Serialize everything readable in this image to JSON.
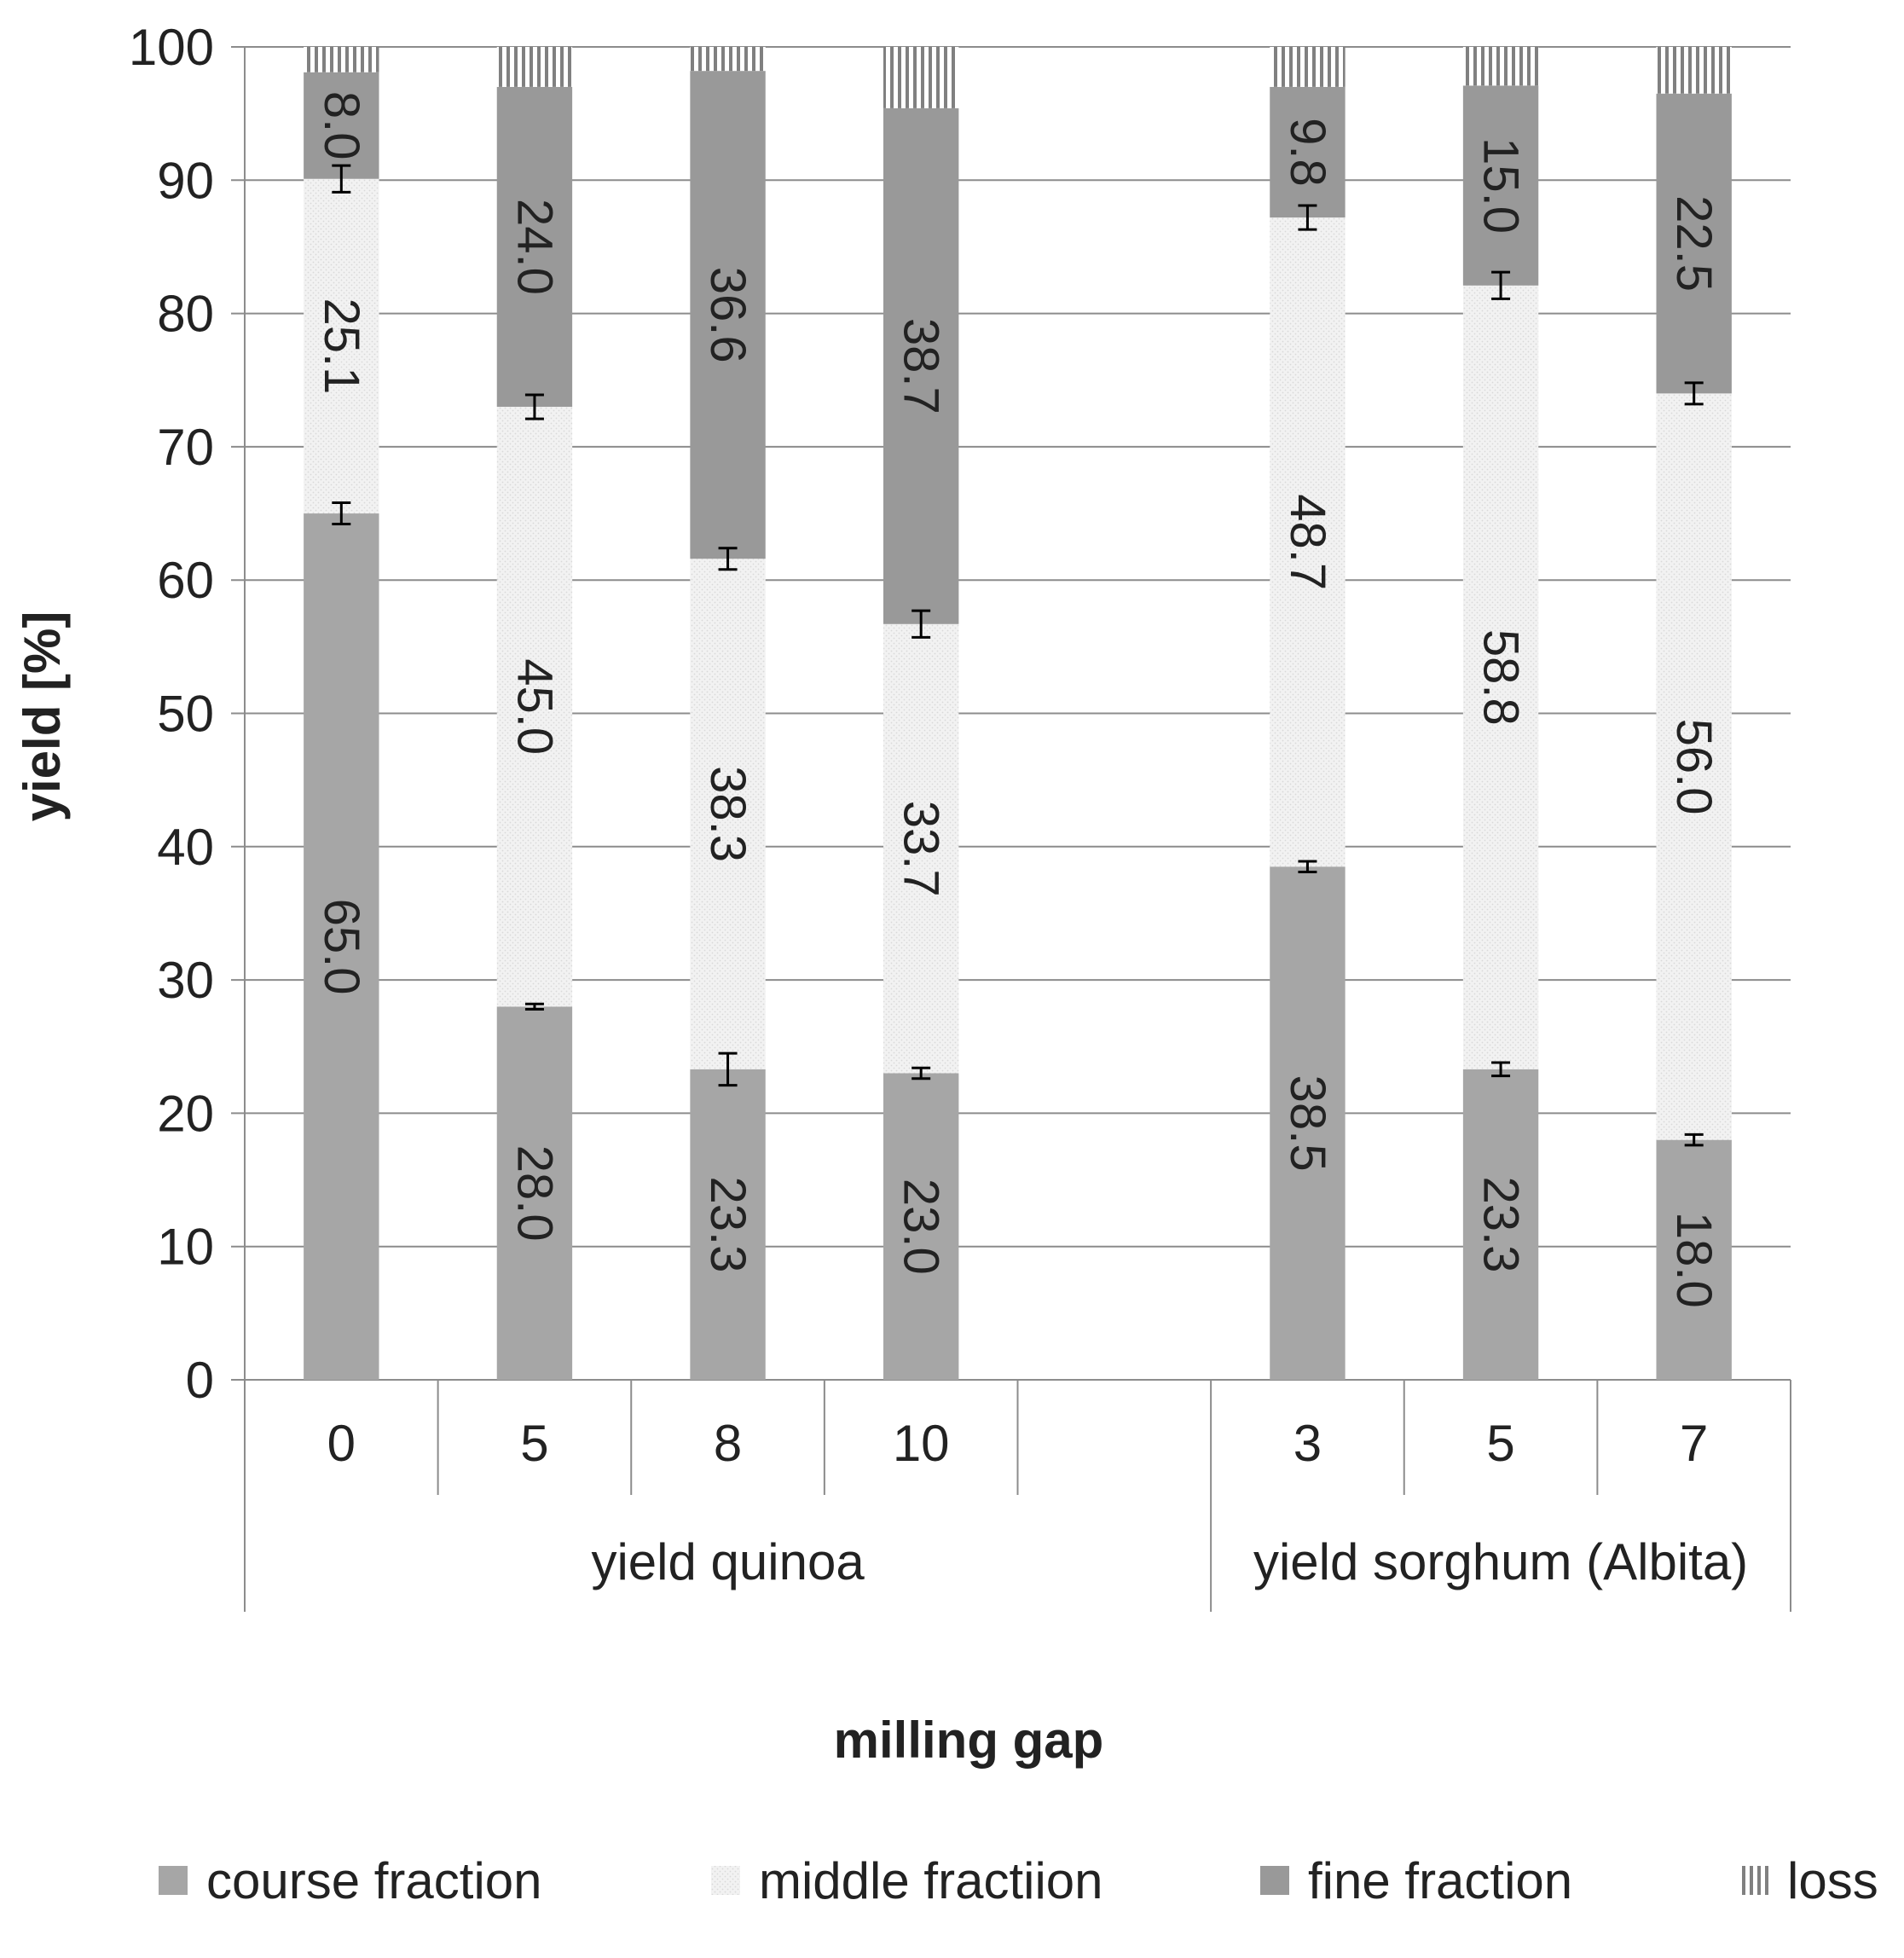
{
  "chart_data": {
    "type": "bar",
    "stacked": true,
    "title": "",
    "xlabel": "milling gap",
    "ylabel": "yield [%]",
    "ylim": [
      0,
      100
    ],
    "yticks": [
      0,
      10,
      20,
      30,
      40,
      50,
      60,
      70,
      80,
      90,
      100
    ],
    "grid": true,
    "legend_position": "bottom",
    "groups": [
      {
        "label": "yield quinoa",
        "categories": [
          "0",
          "5",
          "8",
          "10"
        ]
      },
      {
        "label": "yield sorghum (Albita)",
        "categories": [
          "3",
          "5",
          "7"
        ]
      }
    ],
    "categories": [
      "0",
      "5",
      "8",
      "10",
      "3",
      "5",
      "7"
    ],
    "series": [
      {
        "name": "course fraction",
        "color": "#a6a6a6",
        "pattern": "solid",
        "values": [
          65.0,
          28.0,
          23.3,
          23.0,
          38.5,
          23.3,
          18.0
        ],
        "error": [
          0.8,
          0.2,
          1.2,
          0.4,
          0.4,
          0.5,
          0.4
        ]
      },
      {
        "name": "middle fractiion",
        "color": "#f2f2f2",
        "pattern": "dotted",
        "values": [
          25.1,
          45.0,
          38.3,
          33.7,
          48.7,
          58.8,
          56.0
        ],
        "error": [
          1.0,
          0.9,
          0.8,
          1.0,
          0.9,
          1.0,
          0.8
        ]
      },
      {
        "name": "fine fraction",
        "color": "#999999",
        "pattern": "solid",
        "values": [
          8.0,
          24.0,
          36.6,
          38.7,
          9.8,
          15.0,
          22.5
        ]
      },
      {
        "name": "loss",
        "color": "#ffffff",
        "pattern": "vertical-lines",
        "values": [
          1.9,
          3.0,
          1.8,
          4.6,
          3.0,
          2.9,
          3.5
        ]
      }
    ],
    "data_labels": [
      [
        "65.0",
        "28.0",
        "23.3",
        "23.0",
        "38.5",
        "23.3",
        "18.0"
      ],
      [
        "25.1",
        "45.0",
        "38.3",
        "33.7",
        "48.7",
        "58.8",
        "56.0"
      ],
      [
        "8.0",
        "24.0",
        "36.6",
        "38.7",
        "9.8",
        "15.0",
        "22.5"
      ]
    ]
  }
}
